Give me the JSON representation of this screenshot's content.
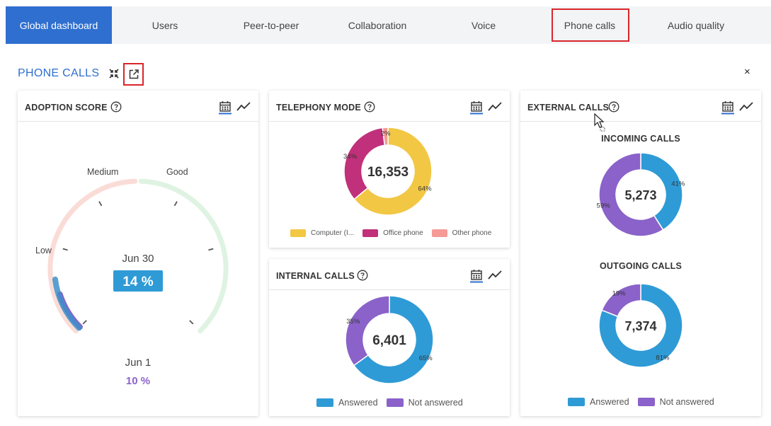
{
  "tabs": [
    {
      "label": "Global dashboard",
      "active": true
    },
    {
      "label": "Users"
    },
    {
      "label": "Peer-to-peer"
    },
    {
      "label": "Collaboration"
    },
    {
      "label": "Voice"
    },
    {
      "label": "Phone calls",
      "highlighted": true
    },
    {
      "label": "Audio quality"
    }
  ],
  "section": {
    "title": "PHONE CALLS",
    "close_label": "×"
  },
  "adoption": {
    "title": "ADOPTION SCORE",
    "gauge_labels": {
      "low": "Low",
      "medium": "Medium",
      "good": "Good"
    },
    "current_date": "Jun 30",
    "current_value": "14 %",
    "previous_date": "Jun 1",
    "previous_value": "10 %",
    "current_pct": 14,
    "previous_pct": 10
  },
  "telephony": {
    "title": "TELEPHONY MODE",
    "total": "16,353",
    "legend": [
      "Computer (I...",
      "Office phone",
      "Other phone"
    ]
  },
  "internal": {
    "title": "INTERNAL CALLS",
    "total": "6,401",
    "legend": [
      "Answered",
      "Not answered"
    ]
  },
  "external": {
    "title": "EXTERNAL CALLS",
    "incoming_title": "INCOMING CALLS",
    "incoming_total": "5,273",
    "outgoing_title": "OUTGOING CALLS",
    "outgoing_total": "7,374",
    "legend": [
      "Answered",
      "Not answered"
    ]
  },
  "colors": {
    "accent": "#2f6fcf",
    "computer": "#f2c744",
    "office": "#c1307a",
    "other": "#f59a96",
    "answered": "#2f9bd6",
    "not_answered": "#8a62c9",
    "highlight": "#d9262b"
  },
  "chart_data": [
    {
      "type": "pie",
      "title": "TELEPHONY MODE",
      "categories": [
        "Computer (I...",
        "Office phone",
        "Other phone"
      ],
      "values": [
        64,
        34,
        2
      ],
      "labels": [
        "64%",
        "34%",
        "2%"
      ],
      "total": "16,353"
    },
    {
      "type": "pie",
      "title": "INTERNAL CALLS",
      "categories": [
        "Answered",
        "Not answered"
      ],
      "values": [
        65,
        35
      ],
      "labels": [
        "65%",
        "35%"
      ],
      "total": "6,401"
    },
    {
      "type": "pie",
      "title": "INCOMING CALLS",
      "categories": [
        "Answered",
        "Not answered"
      ],
      "values": [
        41,
        59
      ],
      "labels": [
        "41%",
        "59%"
      ],
      "total": "5,273"
    },
    {
      "type": "pie",
      "title": "OUTGOING CALLS",
      "categories": [
        "Answered",
        "Not answered"
      ],
      "values": [
        81,
        19
      ],
      "labels": [
        "81%",
        "19%"
      ],
      "total": "7,374"
    }
  ]
}
